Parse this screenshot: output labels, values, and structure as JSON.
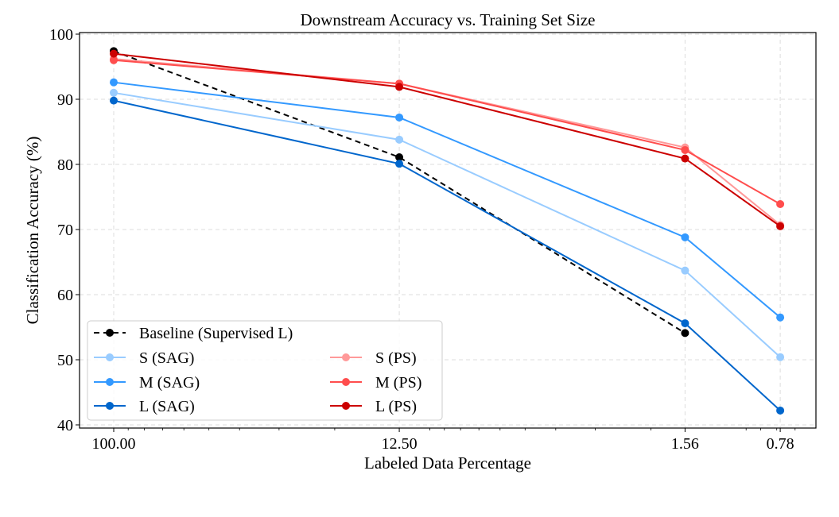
{
  "chart_data": {
    "type": "line",
    "title": "Downstream Accuracy vs. Training Set Size",
    "xlabel": "Labeled Data Percentage",
    "ylabel": "Classification Accuracy (%)",
    "x_scale": "log, reversed",
    "x": [
      100,
      12.5,
      1.56,
      0.78
    ],
    "x_tick_labels": [
      "100.00",
      "12.50",
      "1.56",
      "0.78"
    ],
    "ylim": [
      40,
      100
    ],
    "y_ticks": [
      40,
      50,
      60,
      70,
      80,
      90,
      100
    ],
    "grid": true,
    "legend_position": "lower-left",
    "series": [
      {
        "name": "Baseline (Supervised L)",
        "color": "#000000",
        "dashed": true,
        "values": [
          97.4,
          81.1,
          54.1,
          null
        ]
      },
      {
        "name": "S (SAG)",
        "color": "#99ccff",
        "values": [
          91.0,
          83.8,
          63.7,
          50.4
        ]
      },
      {
        "name": "M (SAG)",
        "color": "#3399ff",
        "values": [
          92.6,
          87.2,
          68.8,
          56.5
        ]
      },
      {
        "name": "L (SAG)",
        "color": "#0066cc",
        "values": [
          89.8,
          80.1,
          55.6,
          42.2
        ]
      },
      {
        "name": "S (PS)",
        "color": "#ff9999",
        "values": [
          96.2,
          92.4,
          82.6,
          70.7
        ]
      },
      {
        "name": "M (PS)",
        "color": "#ff4d4d",
        "values": [
          96.0,
          92.4,
          82.2,
          73.9
        ]
      },
      {
        "name": "L (PS)",
        "color": "#cc0000",
        "values": [
          97.0,
          91.9,
          80.9,
          70.5
        ]
      }
    ]
  }
}
